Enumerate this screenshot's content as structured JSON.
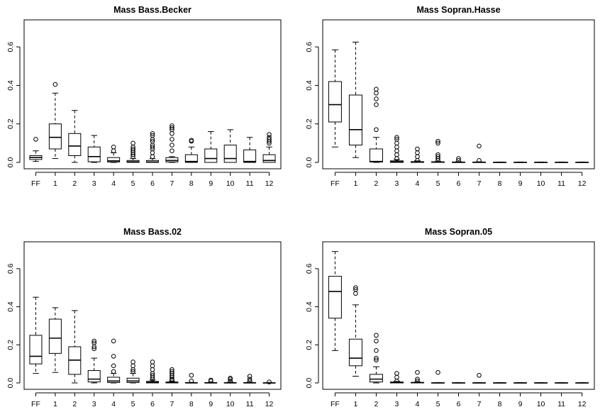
{
  "chart_data": [
    {
      "type": "boxplot",
      "title": "Mass Bass.Becker",
      "categories": [
        "FF",
        "1",
        "2",
        "3",
        "4",
        "5",
        "6",
        "7",
        "8",
        "9",
        "10",
        "11",
        "12"
      ],
      "ylim": [
        0,
        0.7
      ],
      "yticks": [
        "0.0",
        "0.2",
        "0.4",
        "0.6"
      ],
      "grid": false,
      "boxes": [
        {
          "q1": 0.015,
          "median": 0.025,
          "q3": 0.035,
          "lo": 0.005,
          "hi": 0.06,
          "outliers": [
            0.12
          ]
        },
        {
          "q1": 0.07,
          "median": 0.13,
          "q3": 0.2,
          "lo": 0.02,
          "hi": 0.36,
          "outliers": [
            0.405
          ]
        },
        {
          "q1": 0.035,
          "median": 0.085,
          "q3": 0.15,
          "lo": 0.0,
          "hi": 0.27,
          "outliers": []
        },
        {
          "q1": 0.003,
          "median": 0.03,
          "q3": 0.08,
          "lo": 0.0,
          "hi": 0.14,
          "outliers": []
        },
        {
          "q1": 0.002,
          "median": 0.008,
          "q3": 0.025,
          "lo": 0.0,
          "hi": 0.05,
          "outliers": [
            0.06,
            0.08
          ]
        },
        {
          "q1": 0.0,
          "median": 0.003,
          "q3": 0.01,
          "lo": 0.0,
          "hi": 0.02,
          "outliers": [
            0.03,
            0.04,
            0.05,
            0.06,
            0.07,
            0.08,
            0.1
          ]
        },
        {
          "q1": 0.0,
          "median": 0.002,
          "q3": 0.01,
          "lo": 0.0,
          "hi": 0.02,
          "outliers": [
            0.03,
            0.05,
            0.07,
            0.08,
            0.09,
            0.11,
            0.12,
            0.14,
            0.15
          ]
        },
        {
          "q1": 0.002,
          "median": 0.01,
          "q3": 0.025,
          "lo": 0.0,
          "hi": 0.03,
          "outliers": [
            0.06,
            0.09,
            0.12,
            0.15,
            0.17,
            0.18,
            0.19
          ]
        },
        {
          "q1": 0.0,
          "median": 0.005,
          "q3": 0.04,
          "lo": 0.0,
          "hi": 0.08,
          "outliers": [
            0.11,
            0.115
          ]
        },
        {
          "q1": 0.0,
          "median": 0.02,
          "q3": 0.07,
          "lo": 0.0,
          "hi": 0.16,
          "outliers": []
        },
        {
          "q1": 0.0,
          "median": 0.02,
          "q3": 0.09,
          "lo": 0.0,
          "hi": 0.17,
          "outliers": []
        },
        {
          "q1": 0.0,
          "median": 0.005,
          "q3": 0.065,
          "lo": 0.0,
          "hi": 0.13,
          "outliers": []
        },
        {
          "q1": 0.0,
          "median": 0.01,
          "q3": 0.04,
          "lo": 0.0,
          "hi": 0.08,
          "outliers": [
            0.1,
            0.11,
            0.12,
            0.13,
            0.145
          ]
        }
      ]
    },
    {
      "type": "boxplot",
      "title": "Mass Sopran.Hasse",
      "categories": [
        "FF",
        "1",
        "2",
        "3",
        "4",
        "5",
        "6",
        "7",
        "8",
        "9",
        "10",
        "11",
        "12"
      ],
      "ylim": [
        0,
        0.7
      ],
      "yticks": [
        "0.0",
        "0.2",
        "0.4",
        "0.6"
      ],
      "grid": false,
      "boxes": [
        {
          "q1": 0.21,
          "median": 0.3,
          "q3": 0.42,
          "lo": 0.08,
          "hi": 0.585,
          "outliers": []
        },
        {
          "q1": 0.09,
          "median": 0.17,
          "q3": 0.35,
          "lo": 0.025,
          "hi": 0.625,
          "outliers": []
        },
        {
          "q1": 0.002,
          "median": 0.005,
          "q3": 0.07,
          "lo": 0.0,
          "hi": 0.13,
          "outliers": [
            0.17,
            0.3,
            0.33,
            0.36,
            0.38
          ]
        },
        {
          "q1": 0.0,
          "median": 0.003,
          "q3": 0.008,
          "lo": 0.0,
          "hi": 0.015,
          "outliers": [
            0.02,
            0.04,
            0.06,
            0.08,
            0.1,
            0.12,
            0.13
          ]
        },
        {
          "q1": 0.0,
          "median": 0.001,
          "q3": 0.004,
          "lo": 0.0,
          "hi": 0.008,
          "outliers": [
            0.01,
            0.03,
            0.05,
            0.07
          ]
        },
        {
          "q1": 0.0,
          "median": 0.001,
          "q3": 0.003,
          "lo": 0.0,
          "hi": 0.005,
          "outliers": [
            0.01,
            0.02,
            0.03,
            0.04,
            0.1,
            0.11
          ]
        },
        {
          "q1": 0.0,
          "median": 0.0,
          "q3": 0.002,
          "lo": 0.0,
          "hi": 0.004,
          "outliers": [
            0.01,
            0.02
          ]
        },
        {
          "q1": 0.0,
          "median": 0.0,
          "q3": 0.002,
          "lo": 0.0,
          "hi": 0.003,
          "outliers": [
            0.01,
            0.085
          ]
        },
        {
          "q1": 0.0,
          "median": 0.0,
          "q3": 0.001,
          "lo": 0.0,
          "hi": 0.002,
          "outliers": []
        },
        {
          "q1": 0.0,
          "median": 0.0,
          "q3": 0.001,
          "lo": 0.0,
          "hi": 0.002,
          "outliers": []
        },
        {
          "q1": 0.0,
          "median": 0.0,
          "q3": 0.001,
          "lo": 0.0,
          "hi": 0.002,
          "outliers": []
        },
        {
          "q1": 0.0,
          "median": 0.0,
          "q3": 0.001,
          "lo": 0.0,
          "hi": 0.002,
          "outliers": []
        },
        {
          "q1": 0.0,
          "median": 0.0,
          "q3": 0.001,
          "lo": 0.0,
          "hi": 0.002,
          "outliers": []
        }
      ]
    },
    {
      "type": "boxplot",
      "title": "Mass Bass.02",
      "categories": [
        "FF",
        "1",
        "2",
        "3",
        "4",
        "5",
        "6",
        "7",
        "8",
        "9",
        "10",
        "11",
        "12"
      ],
      "ylim": [
        0,
        0.7
      ],
      "yticks": [
        "0.0",
        "0.2",
        "0.4",
        "0.6"
      ],
      "grid": false,
      "boxes": [
        {
          "q1": 0.1,
          "median": 0.14,
          "q3": 0.25,
          "lo": 0.05,
          "hi": 0.45,
          "outliers": []
        },
        {
          "q1": 0.155,
          "median": 0.235,
          "q3": 0.335,
          "lo": 0.055,
          "hi": 0.395,
          "outliers": []
        },
        {
          "q1": 0.045,
          "median": 0.12,
          "q3": 0.19,
          "lo": 0.0,
          "hi": 0.38,
          "outliers": []
        },
        {
          "q1": 0.005,
          "median": 0.02,
          "q3": 0.065,
          "lo": 0.0,
          "hi": 0.13,
          "outliers": [
            0.18,
            0.19,
            0.21,
            0.22
          ]
        },
        {
          "q1": 0.002,
          "median": 0.01,
          "q3": 0.03,
          "lo": 0.0,
          "hi": 0.05,
          "outliers": [
            0.06,
            0.09,
            0.14,
            0.22
          ]
        },
        {
          "q1": 0.002,
          "median": 0.01,
          "q3": 0.025,
          "lo": 0.0,
          "hi": 0.05,
          "outliers": [
            0.06,
            0.07,
            0.09,
            0.11
          ]
        },
        {
          "q1": 0.0,
          "median": 0.003,
          "q3": 0.008,
          "lo": 0.0,
          "hi": 0.015,
          "outliers": [
            0.02,
            0.03,
            0.04,
            0.05,
            0.07,
            0.09,
            0.11
          ]
        },
        {
          "q1": 0.0,
          "median": 0.002,
          "q3": 0.005,
          "lo": 0.0,
          "hi": 0.01,
          "outliers": [
            0.015,
            0.02,
            0.03,
            0.04,
            0.05,
            0.06,
            0.07
          ]
        },
        {
          "q1": 0.0,
          "median": 0.0,
          "q3": 0.002,
          "lo": 0.0,
          "hi": 0.003,
          "outliers": [
            0.01,
            0.04
          ]
        },
        {
          "q1": 0.0,
          "median": 0.0,
          "q3": 0.002,
          "lo": 0.0,
          "hi": 0.003,
          "outliers": [
            0.01,
            0.015
          ]
        },
        {
          "q1": 0.0,
          "median": 0.0,
          "q3": 0.002,
          "lo": 0.0,
          "hi": 0.004,
          "outliers": [
            0.01,
            0.02,
            0.025
          ]
        },
        {
          "q1": 0.0,
          "median": 0.0,
          "q3": 0.002,
          "lo": 0.0,
          "hi": 0.004,
          "outliers": [
            0.01,
            0.02,
            0.035
          ]
        },
        {
          "q1": 0.0,
          "median": 0.0,
          "q3": 0.001,
          "lo": 0.0,
          "hi": 0.002,
          "outliers": [
            0.005
          ]
        }
      ]
    },
    {
      "type": "boxplot",
      "title": "Mass Sopran.05",
      "categories": [
        "FF",
        "1",
        "2",
        "3",
        "4",
        "5",
        "6",
        "7",
        "8",
        "9",
        "10",
        "11",
        "12"
      ],
      "ylim": [
        0,
        0.7
      ],
      "yticks": [
        "0.0",
        "0.2",
        "0.4",
        "0.6"
      ],
      "grid": false,
      "boxes": [
        {
          "q1": 0.34,
          "median": 0.48,
          "q3": 0.56,
          "lo": 0.17,
          "hi": 0.69,
          "outliers": []
        },
        {
          "q1": 0.09,
          "median": 0.13,
          "q3": 0.23,
          "lo": 0.035,
          "hi": 0.41,
          "outliers": [
            0.47,
            0.49,
            0.5
          ]
        },
        {
          "q1": 0.005,
          "median": 0.02,
          "q3": 0.045,
          "lo": 0.0,
          "hi": 0.085,
          "outliers": [
            0.12,
            0.13,
            0.17,
            0.22,
            0.25
          ]
        },
        {
          "q1": 0.0,
          "median": 0.002,
          "q3": 0.005,
          "lo": 0.0,
          "hi": 0.008,
          "outliers": [
            0.01,
            0.03,
            0.05
          ]
        },
        {
          "q1": 0.0,
          "median": 0.001,
          "q3": 0.003,
          "lo": 0.0,
          "hi": 0.005,
          "outliers": [
            0.01,
            0.02,
            0.055
          ]
        },
        {
          "q1": 0.0,
          "median": 0.0,
          "q3": 0.001,
          "lo": 0.0,
          "hi": 0.002,
          "outliers": [
            0.055
          ]
        },
        {
          "q1": 0.0,
          "median": 0.0,
          "q3": 0.001,
          "lo": 0.0,
          "hi": 0.002,
          "outliers": []
        },
        {
          "q1": 0.0,
          "median": 0.0,
          "q3": 0.001,
          "lo": 0.0,
          "hi": 0.002,
          "outliers": [
            0.04
          ]
        },
        {
          "q1": 0.0,
          "median": 0.0,
          "q3": 0.001,
          "lo": 0.0,
          "hi": 0.002,
          "outliers": []
        },
        {
          "q1": 0.0,
          "median": 0.0,
          "q3": 0.001,
          "lo": 0.0,
          "hi": 0.002,
          "outliers": []
        },
        {
          "q1": 0.0,
          "median": 0.0,
          "q3": 0.001,
          "lo": 0.0,
          "hi": 0.002,
          "outliers": []
        },
        {
          "q1": 0.0,
          "median": 0.0,
          "q3": 0.001,
          "lo": 0.0,
          "hi": 0.002,
          "outliers": []
        },
        {
          "q1": 0.0,
          "median": 0.0,
          "q3": 0.001,
          "lo": 0.0,
          "hi": 0.002,
          "outliers": []
        }
      ]
    }
  ]
}
